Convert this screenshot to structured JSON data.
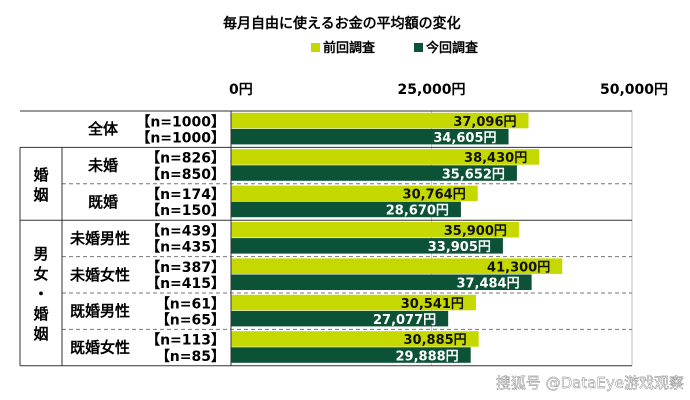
{
  "chart_data": {
    "type": "bar",
    "orientation": "horizontal",
    "title": "毎月自由に使えるお金の平均額の変化",
    "xlim": [
      0,
      50000
    ],
    "ticks": [
      "0円",
      "25,000円",
      "50,000円"
    ],
    "tick_values": [
      0,
      25000,
      50000
    ],
    "legend": {
      "placement": "top-right",
      "items": [
        "前回調査",
        "今回調査"
      ]
    },
    "series_colors": [
      "#c5d800",
      "#0b5236"
    ],
    "groups": [
      {
        "label": "",
        "rows": [
          0
        ]
      },
      {
        "label": "婚姻",
        "rows": [
          1,
          2
        ]
      },
      {
        "label": "男女・婚姻",
        "rows": [
          3,
          4,
          5,
          6
        ]
      }
    ],
    "rows": [
      {
        "category": "全体",
        "n": [
          "【n=1000】",
          "【n=1000】"
        ],
        "values": [
          37096,
          34605
        ],
        "value_labels": [
          "37,096円",
          "34,605円"
        ]
      },
      {
        "category": "未婚",
        "n": [
          "【n=826】",
          "【n=850】"
        ],
        "values": [
          38430,
          35652
        ],
        "value_labels": [
          "38,430円",
          "35,652円"
        ]
      },
      {
        "category": "既婚",
        "n": [
          "【n=174】",
          "【n=150】"
        ],
        "values": [
          30764,
          28670
        ],
        "value_labels": [
          "30,764円",
          "28,670円"
        ]
      },
      {
        "category": "未婚男性",
        "n": [
          "【n=439】",
          "【n=435】"
        ],
        "values": [
          35900,
          33905
        ],
        "value_labels": [
          "35,900円",
          "33,905円"
        ]
      },
      {
        "category": "未婚女性",
        "n": [
          "【n=387】",
          "【n=415】"
        ],
        "values": [
          41300,
          37484
        ],
        "value_labels": [
          "41,300円",
          "37,484円"
        ]
      },
      {
        "category": "既婚男性",
        "n": [
          "【n=61】",
          "【n=65】"
        ],
        "values": [
          30541,
          27077
        ],
        "value_labels": [
          "30,541円",
          "27,077円"
        ]
      },
      {
        "category": "既婚女性",
        "n": [
          "【n=113】",
          "【n=85】"
        ],
        "values": [
          30885,
          29888
        ],
        "value_labels": [
          "30,885円",
          "29,888円"
        ]
      }
    ]
  },
  "watermark": "搜狐号 @DataEye游戏观察"
}
